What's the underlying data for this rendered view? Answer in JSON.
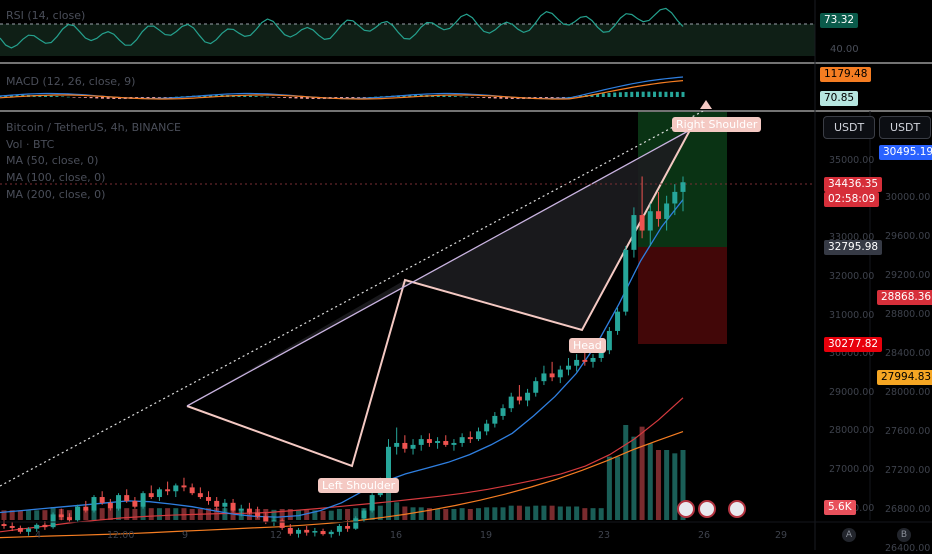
{
  "chart_data": {
    "type": "candlestick",
    "symbol_line": "Bitcoin / TetherUS, 4h, BINANCE",
    "indicators": [
      "RSI (14, close)",
      "MACD (12, 26, close, 9)",
      "Vol · BTC",
      "MA (50, close, 0)",
      "MA (100, close, 0)",
      "MA (200, close, 0)"
    ],
    "price_axis_primary": [
      "35000.00",
      "34000.00",
      "33000.00",
      "32000.00",
      "31000.00",
      "30000.00",
      "29000.00",
      "28000.00",
      "27000.00",
      "26000.00"
    ],
    "price_axis_secondary": [
      "30000.00",
      "29600.00",
      "29200.00",
      "28800.00",
      "28400.00",
      "28000.00",
      "27600.00",
      "27200.00",
      "26800.00",
      "26400.00"
    ],
    "x_ticks": [
      "4",
      "12:00",
      "9",
      "12",
      "16",
      "19",
      "23",
      "26",
      "29"
    ],
    "rsi": {
      "value": "73.32",
      "level": "40.00"
    },
    "macd": {
      "value1": "1179.48",
      "value2": "70.85"
    },
    "price_labels": {
      "last": "34436.35",
      "countdown": "02:58:09",
      "target": "30495.19",
      "entry": "32795.98",
      "ma_red": "28868.36",
      "stop": "30277.82",
      "ma_orange": "27994.83",
      "volume": "5.6K"
    },
    "currency_buttons": [
      "USDT",
      "USDT"
    ],
    "pattern_labels": {
      "left": "Left Shoulder",
      "head": "Head",
      "right": "Right Shoulder"
    },
    "axis_corner": [
      "A",
      "B"
    ],
    "candles": [
      [
        25600,
        25700,
        25480,
        25550
      ],
      [
        25550,
        25650,
        25420,
        25500
      ],
      [
        25500,
        25560,
        25350,
        25400
      ],
      [
        25400,
        25520,
        25300,
        25480
      ],
      [
        25480,
        25620,
        25400,
        25580
      ],
      [
        25580,
        25680,
        25450,
        25520
      ],
      [
        25520,
        25900,
        25480,
        25850
      ],
      [
        25850,
        26000,
        25700,
        25780
      ],
      [
        25780,
        25880,
        25650,
        25700
      ],
      [
        25700,
        26100,
        25650,
        26050
      ],
      [
        26050,
        26200,
        25900,
        25950
      ],
      [
        25950,
        26350,
        25900,
        26300
      ],
      [
        26300,
        26450,
        26100,
        26150
      ],
      [
        26150,
        26250,
        25950,
        26000
      ],
      [
        26000,
        26400,
        25950,
        26350
      ],
      [
        26350,
        26500,
        26150,
        26200
      ],
      [
        26200,
        26300,
        26000,
        26050
      ],
      [
        26050,
        26450,
        26000,
        26400
      ],
      [
        26400,
        26600,
        26250,
        26300
      ],
      [
        26300,
        26550,
        26200,
        26500
      ],
      [
        26500,
        26700,
        26350,
        26450
      ],
      [
        26450,
        26650,
        26300,
        26600
      ],
      [
        26600,
        26800,
        26450,
        26550
      ],
      [
        26550,
        26650,
        26350,
        26400
      ],
      [
        26400,
        26550,
        26250,
        26300
      ],
      [
        26300,
        26450,
        26100,
        26200
      ],
      [
        26200,
        26300,
        25950,
        26050
      ],
      [
        26050,
        26250,
        25900,
        26150
      ],
      [
        26150,
        26250,
        25900,
        25950
      ],
      [
        25950,
        26100,
        25800,
        26000
      ],
      [
        26000,
        26150,
        25850,
        25900
      ],
      [
        25900,
        26050,
        25750,
        25800
      ],
      [
        25800,
        25900,
        25600,
        25650
      ],
      [
        25650,
        25800,
        25550,
        25700
      ],
      [
        25700,
        25750,
        25450,
        25500
      ],
      [
        25500,
        25600,
        25300,
        25350
      ],
      [
        25350,
        25500,
        25250,
        25450
      ],
      [
        25450,
        25550,
        25300,
        25380
      ],
      [
        25380,
        25500,
        25280,
        25420
      ],
      [
        25420,
        25480,
        25300,
        25340
      ],
      [
        25340,
        25450,
        25250,
        25400
      ],
      [
        25400,
        25600,
        25300,
        25550
      ],
      [
        25550,
        25700,
        25400,
        25480
      ],
      [
        25480,
        25800,
        25450,
        25750
      ],
      [
        25750,
        26000,
        25650,
        25950
      ],
      [
        25950,
        26400,
        25900,
        26350
      ],
      [
        26350,
        26800,
        26300,
        26700
      ],
      [
        26700,
        27800,
        26650,
        27600
      ],
      [
        27600,
        28100,
        27400,
        27700
      ],
      [
        27700,
        27900,
        27450,
        27550
      ],
      [
        27550,
        27800,
        27400,
        27650
      ],
      [
        27650,
        27900,
        27500,
        27800
      ],
      [
        27800,
        27950,
        27600,
        27700
      ],
      [
        27700,
        27850,
        27550,
        27750
      ],
      [
        27750,
        27900,
        27600,
        27650
      ],
      [
        27650,
        27800,
        27500,
        27700
      ],
      [
        27700,
        27950,
        27600,
        27850
      ],
      [
        27850,
        28000,
        27700,
        27800
      ],
      [
        27800,
        28100,
        27750,
        28000
      ],
      [
        28000,
        28300,
        27900,
        28200
      ],
      [
        28200,
        28500,
        28100,
        28400
      ],
      [
        28400,
        28700,
        28300,
        28600
      ],
      [
        28600,
        29000,
        28500,
        28900
      ],
      [
        28900,
        29200,
        28700,
        28800
      ],
      [
        28800,
        29100,
        28650,
        29000
      ],
      [
        29000,
        29400,
        28900,
        29300
      ],
      [
        29300,
        29700,
        29200,
        29500
      ],
      [
        29500,
        29800,
        29300,
        29400
      ],
      [
        29400,
        29700,
        29250,
        29600
      ],
      [
        29600,
        29900,
        29450,
        29700
      ],
      [
        29700,
        30000,
        29550,
        29850
      ],
      [
        29850,
        30050,
        29700,
        29800
      ],
      [
        29800,
        30000,
        29650,
        29900
      ],
      [
        29900,
        30150,
        29800,
        30100
      ],
      [
        30100,
        30700,
        30000,
        30600
      ],
      [
        30600,
        31200,
        30500,
        31100
      ],
      [
        31100,
        32800,
        31000,
        32700
      ],
      [
        32700,
        33800,
        32500,
        33600
      ],
      [
        33600,
        34600,
        33000,
        33200
      ],
      [
        33200,
        33900,
        32800,
        33700
      ],
      [
        33700,
        34200,
        33300,
        33500
      ],
      [
        33500,
        34100,
        33200,
        33900
      ],
      [
        33900,
        34400,
        33600,
        34200
      ],
      [
        34200,
        34600,
        33700,
        34450
      ]
    ],
    "ma50": [
      25900,
      25950,
      26000,
      26050,
      26100,
      26150,
      26200,
      26180,
      26120,
      26050,
      25950,
      25850,
      25800,
      25780,
      25820,
      25950,
      26150,
      26450,
      26700,
      26900,
      27050,
      27200,
      27400,
      27650,
      27950,
      28400,
      28900,
      29500,
      30300,
      31300,
      32400,
      33300,
      34000
    ],
    "ma100": [
      25400,
      25480,
      25560,
      25640,
      25700,
      25760,
      25800,
      25830,
      25850,
      25870,
      25880,
      25900,
      25950,
      26000,
      26060,
      26120,
      26180,
      26250,
      26320,
      26400,
      26500,
      26620,
      26750,
      26900,
      27100,
      27400,
      27800,
      28300,
      28868
    ],
    "ma200": [
      25250,
      25270,
      25290,
      25310,
      25330,
      25350,
      25380,
      25410,
      25440,
      25470,
      25500,
      25530,
      25570,
      25620,
      25680,
      25760,
      25850,
      25960,
      26080,
      26220,
      26380,
      26560,
      26760,
      26990,
      27240,
      27520,
      27760,
      27994
    ]
  }
}
